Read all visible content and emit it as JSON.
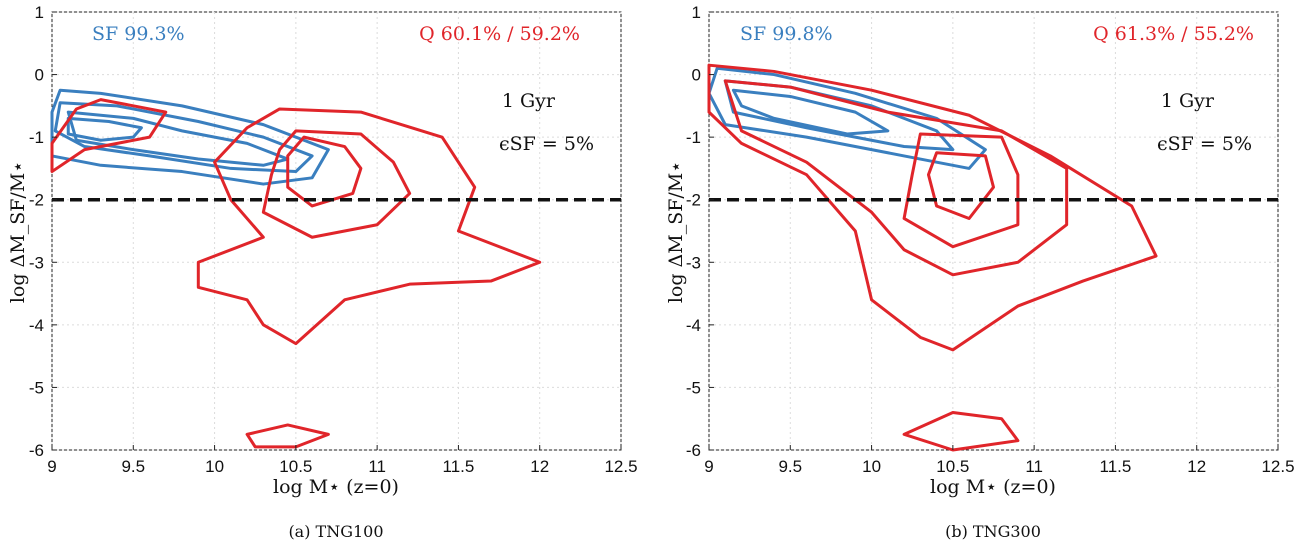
{
  "colors": {
    "sf": "#3a7fbf",
    "q": "#e0252a",
    "threshold": "#111111",
    "grid": "#dcdcdc"
  },
  "chart_data": [
    {
      "type": "line",
      "panel": "a",
      "caption": "(a) TNG100",
      "xlabel": "log M⋆ (z=0)",
      "ylabel": "log ΔM_SF/M⋆",
      "xlim": [
        9,
        12.5
      ],
      "ylim": [
        -6,
        1
      ],
      "x_ticks": [
        "9",
        "9.5",
        "10",
        "10.5",
        "11",
        "11.5",
        "12",
        "12.5"
      ],
      "y_ticks": [
        "1",
        "0",
        "-1",
        "-2",
        "-3",
        "-4",
        "-5",
        "-6"
      ],
      "grid": true,
      "annotations": {
        "sf_text": "SF 99.3%",
        "q_text": "Q 60.1% / 59.2%",
        "time_text": "1 Gyr",
        "eps_text": "ϵSF = 5%"
      },
      "threshold_y": -2,
      "series": [
        {
          "group": "SF",
          "contours": [
            [
              [
                9.05,
                -0.25
              ],
              [
                9.3,
                -0.3
              ],
              [
                9.8,
                -0.5
              ],
              [
                10.3,
                -0.8
              ],
              [
                10.7,
                -1.2
              ],
              [
                10.6,
                -1.65
              ],
              [
                10.3,
                -1.75
              ],
              [
                9.8,
                -1.55
              ],
              [
                9.3,
                -1.45
              ],
              [
                9.0,
                -1.3
              ],
              [
                9.0,
                -0.6
              ]
            ],
            [
              [
                9.05,
                -0.45
              ],
              [
                9.4,
                -0.5
              ],
              [
                9.9,
                -0.75
              ],
              [
                10.3,
                -1.0
              ],
              [
                10.6,
                -1.3
              ],
              [
                10.5,
                -1.55
              ],
              [
                10.1,
                -1.5
              ],
              [
                9.6,
                -1.3
              ],
              [
                9.2,
                -1.15
              ],
              [
                9.02,
                -0.9
              ]
            ],
            [
              [
                9.1,
                -0.6
              ],
              [
                9.5,
                -0.7
              ],
              [
                9.8,
                -0.9
              ],
              [
                10.2,
                -1.1
              ],
              [
                10.45,
                -1.35
              ],
              [
                10.3,
                -1.45
              ],
              [
                9.9,
                -1.35
              ],
              [
                9.5,
                -1.2
              ],
              [
                9.15,
                -1.05
              ]
            ],
            [
              [
                9.1,
                -0.7
              ],
              [
                9.35,
                -0.75
              ],
              [
                9.55,
                -0.85
              ],
              [
                9.5,
                -1.0
              ],
              [
                9.3,
                -1.05
              ],
              [
                9.1,
                -0.95
              ]
            ]
          ]
        },
        {
          "group": "Q",
          "contours": [
            [
              [
                9.3,
                -0.4
              ],
              [
                9.7,
                -0.6
              ],
              [
                9.6,
                -1.0
              ],
              [
                9.2,
                -1.2
              ],
              [
                9.0,
                -1.55
              ],
              [
                9.0,
                -1.1
              ],
              [
                9.15,
                -0.55
              ]
            ],
            [
              [
                10.4,
                -0.55
              ],
              [
                10.9,
                -0.6
              ],
              [
                11.4,
                -1.0
              ],
              [
                11.6,
                -1.8
              ],
              [
                11.5,
                -2.5
              ],
              [
                11.8,
                -2.8
              ],
              [
                12.0,
                -3.0
              ],
              [
                11.7,
                -3.3
              ],
              [
                11.2,
                -3.35
              ],
              [
                10.8,
                -3.6
              ],
              [
                10.5,
                -4.3
              ],
              [
                10.3,
                -4.0
              ],
              [
                10.2,
                -3.6
              ],
              [
                9.9,
                -3.4
              ],
              [
                9.9,
                -3.0
              ],
              [
                10.3,
                -2.6
              ],
              [
                10.1,
                -2.0
              ],
              [
                10.0,
                -1.4
              ],
              [
                10.2,
                -0.85
              ]
            ],
            [
              [
                10.5,
                -0.9
              ],
              [
                10.9,
                -0.95
              ],
              [
                11.1,
                -1.4
              ],
              [
                11.2,
                -1.9
              ],
              [
                11.0,
                -2.4
              ],
              [
                10.6,
                -2.6
              ],
              [
                10.3,
                -2.2
              ],
              [
                10.35,
                -1.6
              ],
              [
                10.4,
                -1.2
              ]
            ],
            [
              [
                10.55,
                -1.0
              ],
              [
                10.8,
                -1.15
              ],
              [
                10.9,
                -1.5
              ],
              [
                10.85,
                -1.9
              ],
              [
                10.6,
                -2.1
              ],
              [
                10.45,
                -1.8
              ],
              [
                10.45,
                -1.3
              ]
            ],
            [
              [
                10.2,
                -5.75
              ],
              [
                10.45,
                -5.6
              ],
              [
                10.7,
                -5.75
              ],
              [
                10.5,
                -5.95
              ],
              [
                10.25,
                -5.95
              ]
            ]
          ]
        }
      ]
    },
    {
      "type": "line",
      "panel": "b",
      "caption": "(b) TNG300",
      "xlabel": "log M⋆ (z=0)",
      "ylabel": "log ΔM_SF/M⋆",
      "xlim": [
        9,
        12.5
      ],
      "ylim": [
        -6,
        1
      ],
      "x_ticks": [
        "9",
        "9.5",
        "10",
        "10.5",
        "11",
        "11.5",
        "12",
        "12.5"
      ],
      "y_ticks": [
        "1",
        "0",
        "-1",
        "-2",
        "-3",
        "-4",
        "-5",
        "-6"
      ],
      "grid": true,
      "annotations": {
        "sf_text": "SF 99.8%",
        "q_text": "Q 61.3% / 55.2%",
        "time_text": "1 Gyr",
        "eps_text": "ϵSF = 5%"
      },
      "threshold_y": -2,
      "series": [
        {
          "group": "SF",
          "contours": [
            [
              [
                9.05,
                0.1
              ],
              [
                9.4,
                0.0
              ],
              [
                9.9,
                -0.3
              ],
              [
                10.4,
                -0.7
              ],
              [
                10.7,
                -1.2
              ],
              [
                10.6,
                -1.5
              ],
              [
                10.2,
                -1.3
              ],
              [
                9.6,
                -1.0
              ],
              [
                9.1,
                -0.8
              ],
              [
                9.0,
                -0.3
              ]
            ],
            [
              [
                9.1,
                -0.1
              ],
              [
                9.5,
                -0.2
              ],
              [
                10.0,
                -0.5
              ],
              [
                10.4,
                -0.9
              ],
              [
                10.5,
                -1.2
              ],
              [
                10.2,
                -1.15
              ],
              [
                9.6,
                -0.85
              ],
              [
                9.15,
                -0.6
              ]
            ],
            [
              [
                9.15,
                -0.25
              ],
              [
                9.5,
                -0.35
              ],
              [
                9.9,
                -0.6
              ],
              [
                10.1,
                -0.9
              ],
              [
                9.85,
                -0.95
              ],
              [
                9.4,
                -0.7
              ],
              [
                9.2,
                -0.5
              ]
            ]
          ]
        },
        {
          "group": "Q",
          "contours": [
            [
              [
                9.0,
                0.15
              ],
              [
                9.4,
                0.05
              ],
              [
                10.0,
                -0.25
              ],
              [
                10.6,
                -0.65
              ],
              [
                11.1,
                -1.3
              ],
              [
                11.6,
                -2.1
              ],
              [
                11.75,
                -2.9
              ],
              [
                11.3,
                -3.3
              ],
              [
                10.9,
                -3.7
              ],
              [
                10.5,
                -4.4
              ],
              [
                10.3,
                -4.2
              ],
              [
                10.0,
                -3.6
              ],
              [
                9.9,
                -2.5
              ],
              [
                9.6,
                -1.6
              ],
              [
                9.2,
                -1.1
              ],
              [
                9.0,
                -0.6
              ]
            ],
            [
              [
                9.1,
                -0.1
              ],
              [
                9.5,
                -0.2
              ],
              [
                10.1,
                -0.6
              ],
              [
                10.8,
                -0.9
              ],
              [
                11.2,
                -1.5
              ],
              [
                11.2,
                -2.4
              ],
              [
                10.9,
                -3.0
              ],
              [
                10.5,
                -3.2
              ],
              [
                10.2,
                -2.8
              ],
              [
                10.0,
                -2.2
              ],
              [
                9.6,
                -1.4
              ],
              [
                9.2,
                -0.9
              ]
            ],
            [
              [
                10.3,
                -0.95
              ],
              [
                10.8,
                -1.0
              ],
              [
                10.9,
                -1.6
              ],
              [
                10.9,
                -2.4
              ],
              [
                10.5,
                -2.75
              ],
              [
                10.2,
                -2.3
              ],
              [
                10.25,
                -1.6
              ]
            ],
            [
              [
                10.4,
                -1.25
              ],
              [
                10.7,
                -1.3
              ],
              [
                10.75,
                -1.8
              ],
              [
                10.6,
                -2.3
              ],
              [
                10.4,
                -2.1
              ],
              [
                10.35,
                -1.6
              ]
            ],
            [
              [
                10.2,
                -5.75
              ],
              [
                10.5,
                -5.4
              ],
              [
                10.8,
                -5.5
              ],
              [
                10.9,
                -5.85
              ],
              [
                10.5,
                -6.0
              ]
            ]
          ]
        }
      ]
    }
  ]
}
